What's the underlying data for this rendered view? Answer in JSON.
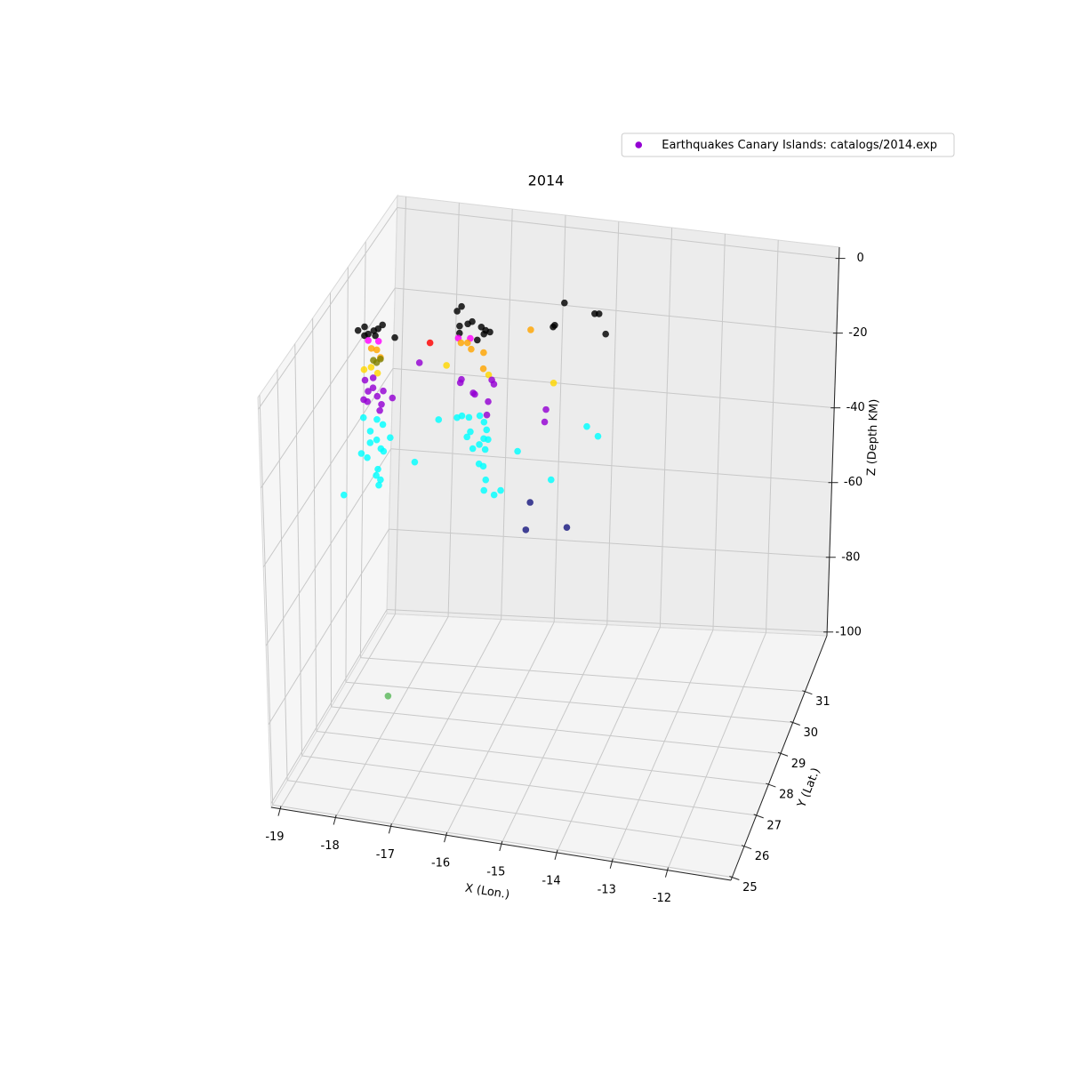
{
  "chart_data": {
    "type": "scatter3d",
    "title": "2014",
    "xlabel": "X (Lon.)",
    "ylabel": "Y (Lat.)",
    "zlabel": "Z (Depth KM)",
    "xlim": [
      -19.16,
      -10.85
    ],
    "ylim": [
      24.9,
      32.8
    ],
    "zlim": [
      -101,
      3
    ],
    "xticks": [
      -19,
      -18,
      -17,
      -16,
      -15,
      -14,
      -13,
      -12
    ],
    "yticks": [
      25,
      26,
      27,
      28,
      29,
      30,
      31
    ],
    "zticks": [
      0,
      -20,
      -40,
      -60,
      -80,
      -100
    ],
    "grid": true,
    "legend": {
      "label": "Earthquakes Canary Islands: catalogs/2014.exp",
      "color": "#9400d3",
      "loc": "upper right"
    },
    "groups": [
      {
        "color": "#000000",
        "x": [
          -19.28,
          -19.16,
          -19.09,
          -18.99,
          -18.91,
          -18.83,
          -18.96,
          -18.6,
          -19.16,
          -17.38,
          -17.46,
          -17.41,
          -17.26,
          -17.18,
          -17.01,
          -16.93,
          -16.85,
          -16.96,
          -17.08,
          -17.41,
          -15.49,
          -15.69,
          -15.66,
          -14.93,
          -14.85,
          -14.72
        ],
        "y": [
          31,
          31,
          31,
          31,
          31,
          31,
          31,
          31,
          31,
          31,
          31,
          31,
          31,
          31,
          31,
          31,
          31,
          31,
          31,
          31,
          31,
          31,
          31,
          31,
          31,
          31
        ],
        "z": [
          -19.4,
          -18.3,
          -20.0,
          -19.0,
          -18.4,
          -17.3,
          -20.2,
          -20.1,
          -20.5,
          -10.3,
          -11.6,
          -15.3,
          -14.5,
          -13.8,
          -14.9,
          -15.6,
          -15.9,
          -16.6,
          -18.3,
          -17.1,
          -6.2,
          -12.7,
          -12.2,
          -8.0,
          -7.9,
          -12.9
        ]
      },
      {
        "color": "#ff0000",
        "x": [
          -17.95
        ],
        "y": [
          31
        ],
        "z": [
          -20.4
        ]
      },
      {
        "color": "#ff00ff",
        "x": [
          -19.09,
          -18.9,
          -17.43,
          -17.21
        ],
        "y": [
          31,
          31,
          31,
          31
        ],
        "z": [
          -21.6,
          -21.5,
          -18.4,
          -18.1
        ]
      },
      {
        "color": "#ffa500",
        "x": [
          -19.03,
          -18.93,
          -18.86,
          -17.38,
          -17.26,
          -17.19,
          -16.96,
          -16.1,
          -16.96
        ],
        "y": [
          31,
          31,
          31,
          31,
          31,
          31,
          31,
          31,
          31
        ],
        "z": [
          -23.5,
          -23.7,
          -25.5,
          -19.5,
          -19.3,
          -20.8,
          -21.3,
          -14.1,
          -25.4
        ]
      },
      {
        "color": "#ffd700",
        "x": [
          -19.16,
          -19.03,
          -18.91,
          -17.64,
          -16.86,
          -15.66
        ],
        "y": [
          31,
          31,
          31,
          31,
          31,
          31
        ],
        "z": [
          -29.0,
          -28.2,
          -29.5,
          -25.6,
          -26.8,
          -27.0
        ]
      },
      {
        "color": "#808000",
        "x": [
          -18.99,
          -18.93,
          -18.86
        ],
        "y": [
          31,
          31,
          31
        ],
        "z": [
          -26.4,
          -26.9,
          -25.9
        ]
      },
      {
        "color": "#9400d3",
        "x": [
          -19.14,
          -19.08,
          -18.99,
          -18.91,
          -18.83,
          -19.09,
          -18.86,
          -18.63,
          -18.14,
          -17.36,
          -17.38,
          -17.14,
          -17.11,
          -16.8,
          -16.76,
          -16.86,
          -16.88,
          -15.79,
          -15.81,
          -19.16,
          -18.99,
          -18.8
        ],
        "y": [
          31,
          31,
          31,
          31,
          31,
          31,
          31,
          31,
          31,
          31,
          31,
          31,
          31,
          31,
          31,
          31,
          31,
          31,
          31,
          31,
          31,
          31
        ],
        "z": [
          -31.6,
          -34.3,
          -33.3,
          -35.3,
          -37.2,
          -36.9,
          -38.8,
          -35.3,
          -25.7,
          -28.7,
          -29.6,
          -31.8,
          -32.1,
          -28.0,
          -29.0,
          -33.6,
          -37.0,
          -34.0,
          -37.2,
          -36.5,
          -30.8,
          -33.8
        ]
      },
      {
        "color": "#00ffff",
        "x": [
          -19.16,
          -19.03,
          -18.91,
          -18.8,
          -19.03,
          -18.91,
          -18.83,
          -18.66,
          -19.19,
          -19.08,
          -18.88,
          -18.91,
          -18.83,
          -18.92,
          -18.86,
          -18.78,
          -18.2,
          -17.77,
          -17.43,
          -17.34,
          -17.18,
          -17.24,
          -17.01,
          -16.93,
          -16.88,
          -16.93,
          -16.85,
          -17.13,
          -16.9,
          -17.01,
          -16.93,
          -16.88,
          -16.91,
          -16.72,
          -16.6,
          -16.3,
          -15.67,
          -15.03,
          -14.82,
          -17.21,
          -17.01
        ],
        "y": [
          31,
          31,
          31,
          31,
          31,
          31,
          31,
          31,
          31,
          31,
          31,
          31,
          31,
          29,
          31,
          31,
          31,
          31,
          31,
          31,
          31,
          31,
          31,
          31,
          31,
          31,
          31,
          31,
          31,
          31,
          31,
          31,
          31,
          31,
          31,
          31,
          31,
          31,
          31,
          31,
          31
        ],
        "z": [
          -41.0,
          -44.2,
          -41.1,
          -42.2,
          -47.1,
          -46.2,
          -48.3,
          -45.3,
          -50.0,
          -50.9,
          -53.5,
          -55.1,
          -56.1,
          -47.4,
          -57.5,
          -48.9,
          -50.8,
          -39.5,
          -38.5,
          -37.9,
          -41.7,
          -43.1,
          -37.4,
          -38.9,
          -40.8,
          -43.1,
          -43.2,
          -45.9,
          -45.8,
          -49.6,
          -50.1,
          -53.5,
          -56.2,
          -57.1,
          -55.8,
          -45.4,
          -51.8,
          -37.2,
          -39.4,
          -38.1,
          -44.7
        ]
      },
      {
        "color": "#1a1a80",
        "x": [
          -16.05,
          -16.12,
          -15.36
        ],
        "y": [
          31,
          31,
          31
        ],
        "z": [
          -58.1,
          -65.2,
          -63.6
        ]
      },
      {
        "color": "#5cb85c",
        "x": [
          -18.11
        ],
        "y": [
          29
        ],
        "z": [
          -96.8
        ]
      }
    ]
  }
}
